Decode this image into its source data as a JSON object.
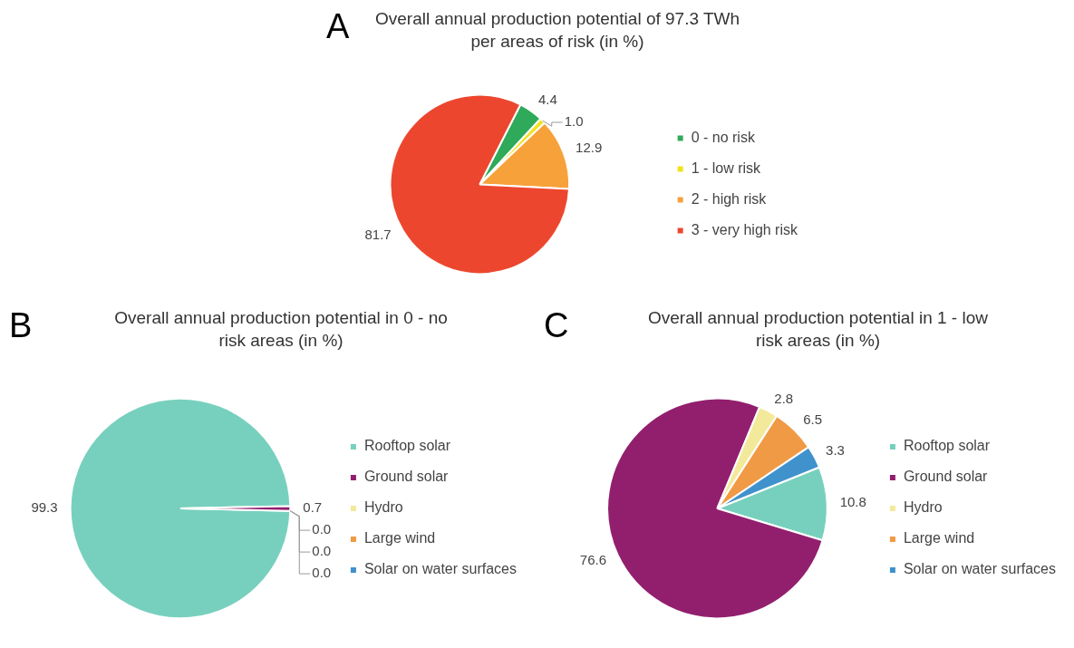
{
  "chart_data": [
    {
      "type": "pie",
      "title": "Overall annual production potential of 97.3 TWh per areas of risk (in %)",
      "annotations": [
        "A"
      ],
      "categories": [
        "0 - no risk",
        "1 - low risk",
        "2 - high risk",
        "3 - very high risk"
      ],
      "values": [
        4.4,
        1.0,
        12.9,
        81.7
      ],
      "value_labels": [
        "4.4",
        "1.0",
        "12.9",
        "81.7"
      ],
      "colors": [
        "#2eaa5a",
        "#f2e21c",
        "#f7a13a",
        "#ec472e"
      ],
      "legend": "right"
    },
    {
      "type": "pie",
      "title": "Overall annual production potential in 0 - no risk areas (in %)",
      "annotations": [
        "B"
      ],
      "categories": [
        "Rooftop solar",
        "Ground solar",
        "Hydro",
        "Large wind",
        "Solar on water surfaces"
      ],
      "values": [
        99.3,
        0.7,
        0.0,
        0.0,
        0.0
      ],
      "value_labels": [
        "99.3",
        "0.7",
        "0.0",
        "0.0",
        "0.0"
      ],
      "colors": [
        "#77d0bd",
        "#921f6e",
        "#f3e99a",
        "#f19a45",
        "#3f92cc"
      ],
      "legend": "right"
    },
    {
      "type": "pie",
      "title": "Overall annual production potential in 1 - low risk areas (in %)",
      "annotations": [
        "C"
      ],
      "categories": [
        "Rooftop solar",
        "Ground solar",
        "Hydro",
        "Large wind",
        "Solar on water surfaces"
      ],
      "values": [
        10.8,
        76.6,
        2.8,
        6.5,
        3.3
      ],
      "value_labels": [
        "10.8",
        "76.6",
        "2.8",
        "6.5",
        "3.3"
      ],
      "colors": [
        "#77d0bd",
        "#921f6e",
        "#f3e99a",
        "#f19a45",
        "#3f92cc"
      ],
      "legend": "right"
    }
  ]
}
